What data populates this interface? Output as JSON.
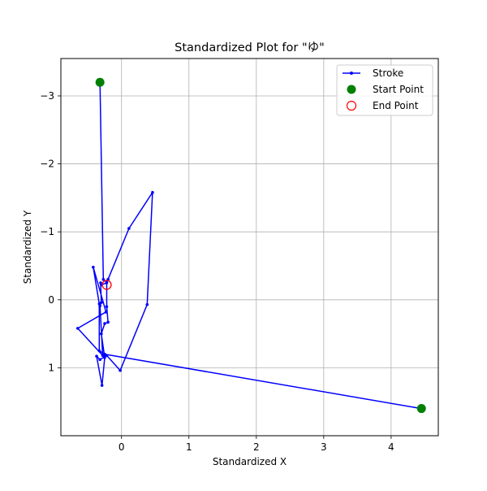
{
  "chart_data": {
    "type": "line",
    "title": "Standardized Plot for \"ゆ\"",
    "xlabel": "Standardized X",
    "ylabel": "Standardized Y",
    "xlim": [
      -0.9,
      4.7
    ],
    "ylim": [
      2.0,
      -3.55
    ],
    "y_inverted": true,
    "x_ticks": [
      0,
      1,
      2,
      3,
      4
    ],
    "y_ticks": [
      -3,
      -2,
      -1,
      0,
      1
    ],
    "x_tick_labels": [
      "0",
      "1",
      "2",
      "3",
      "4"
    ],
    "y_tick_labels": [
      "−3",
      "−2",
      "−1",
      "0",
      "1"
    ],
    "grid": true,
    "legend_placement": "top-right",
    "series": [
      {
        "name": "Stroke",
        "color": "#0000ff",
        "marker": "dot",
        "x": [
          -0.32,
          -0.27,
          -0.22,
          -0.22,
          -0.2,
          -0.25,
          -0.3,
          -0.25,
          -0.29,
          -0.37,
          -0.32,
          -0.22,
          -0.02,
          0.38,
          0.46,
          0.11,
          -0.2,
          -0.22,
          -0.3,
          -0.31,
          -0.3,
          -0.32,
          -0.28,
          -0.65,
          -0.23,
          -0.42,
          -0.33,
          -0.33,
          -0.25,
          4.45
        ],
        "y": [
          -3.2,
          -0.3,
          -0.26,
          0.1,
          0.33,
          0.35,
          0.5,
          0.85,
          1.26,
          0.83,
          0.88,
          0.82,
          1.04,
          0.07,
          -1.58,
          -1.05,
          -0.3,
          -0.25,
          -0.22,
          -0.25,
          0.04,
          0.09,
          0.82,
          0.42,
          0.18,
          -0.48,
          0.06,
          0.75,
          0.8,
          1.6
        ]
      }
    ],
    "start_point": {
      "name": "Start Point",
      "x": -0.32,
      "y": -3.2,
      "color": "#008000"
    },
    "end_point": {
      "name": "End Point",
      "x": -0.22,
      "y": -0.22,
      "color": "#ff0000"
    },
    "extra_start_point": {
      "x": 4.45,
      "y": 1.6,
      "color": "#008000"
    }
  }
}
